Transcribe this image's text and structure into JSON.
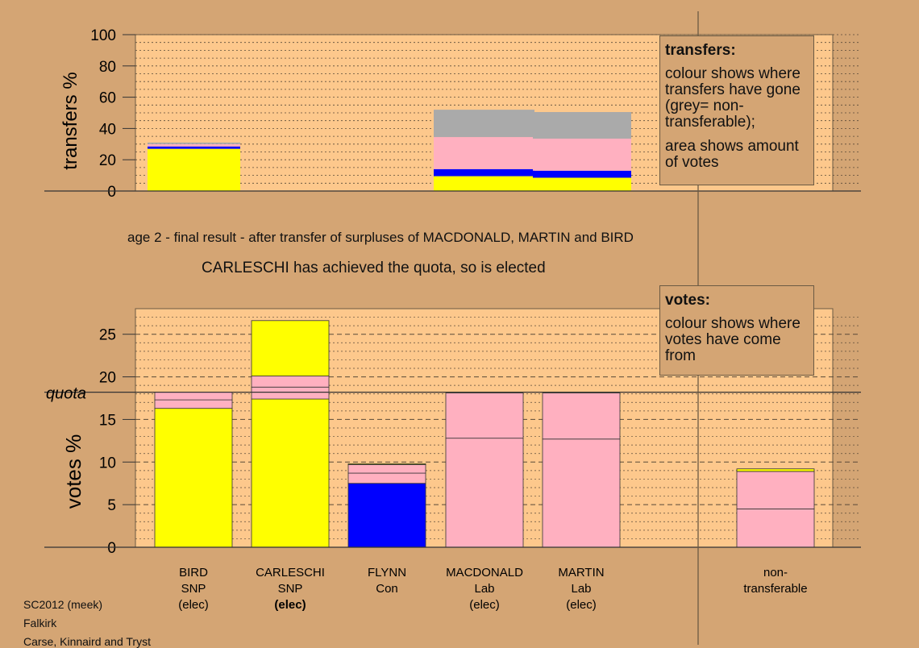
{
  "captions": {
    "stage": "age 2 - final result - after transfer of surpluses of MACDONALD, MARTIN and BIRD",
    "result": "CARLESCHI has achieved the quota, so is elected"
  },
  "legends": {
    "transfers": {
      "title": "transfers:",
      "line1": "colour shows where transfers have gone (grey= non-transferable);",
      "line2": "area shows amount of votes"
    },
    "votes": {
      "title": "votes:",
      "line1": "colour shows where votes have come from"
    }
  },
  "footer": {
    "line1": "SC2012 (meek)",
    "line2": "Falkirk",
    "line3": "Carse, Kinnaird and Tryst"
  },
  "colors": {
    "background": "#d4a574",
    "plot": "#fdc88c",
    "snp": "#ffff00",
    "con": "#0000ff",
    "lab": "#ffb0c0",
    "nontransferable": "#aaaaaa"
  },
  "chart_data": [
    {
      "type": "bar",
      "ylabel": "transfers %",
      "ylim": [
        0,
        100
      ],
      "yticks": [
        0,
        20,
        40,
        60,
        80,
        100
      ],
      "stacked": true,
      "columns": [
        {
          "name": "BIRD",
          "segments": [
            {
              "party": "SNP",
              "color": "#ffff00",
              "value": 27
            },
            {
              "party": "Con",
              "color": "#0000ff",
              "value": 1.5
            },
            {
              "party": "Lab",
              "color": "#ffb0c0",
              "value": 1.5
            },
            {
              "party": "non-transferable",
              "color": "#aaaaaa",
              "value": 1
            }
          ]
        },
        {
          "name": "CARLESCHI",
          "segments": []
        },
        {
          "name": "FLYNN",
          "segments": []
        },
        {
          "name": "MACDONALD",
          "segments": [
            {
              "party": "SNP",
              "color": "#ffff00",
              "value": 9.5
            },
            {
              "party": "Con",
              "color": "#0000ff",
              "value": 4.5
            },
            {
              "party": "Lab",
              "color": "#ffb0c0",
              "value": 20.5
            },
            {
              "party": "non-transferable",
              "color": "#aaaaaa",
              "value": 17.5
            }
          ]
        },
        {
          "name": "MARTIN",
          "segments": [
            {
              "party": "SNP",
              "color": "#ffff00",
              "value": 8.5
            },
            {
              "party": "Con",
              "color": "#0000ff",
              "value": 4.5
            },
            {
              "party": "Lab",
              "color": "#ffb0c0",
              "value": 20.5
            },
            {
              "party": "non-transferable",
              "color": "#aaaaaa",
              "value": 17
            }
          ]
        }
      ]
    },
    {
      "type": "bar",
      "ylabel": "votes %",
      "ylim": [
        0,
        28
      ],
      "yticks": [
        0,
        5,
        10,
        15,
        20,
        25
      ],
      "quota": 18.2,
      "quota_label": "quota",
      "stacked": true,
      "categories": [
        {
          "name": "BIRD",
          "party": "SNP",
          "status": "(elec)",
          "status_bold": false
        },
        {
          "name": "CARLESCHI",
          "party": "SNP",
          "status": "(elec)",
          "status_bold": true
        },
        {
          "name": "FLYNN",
          "party": "Con",
          "status": "",
          "status_bold": false
        },
        {
          "name": "MACDONALD",
          "party": "Lab",
          "status": "(elec)",
          "status_bold": false
        },
        {
          "name": "MARTIN",
          "party": "Lab",
          "status": "(elec)",
          "status_bold": false
        },
        {
          "name": "",
          "party": "",
          "status": "",
          "status_bold": false
        },
        {
          "name": "non-",
          "party": "transferable",
          "status": "",
          "status_bold": false
        }
      ],
      "columns": [
        {
          "segments": [
            {
              "color": "#ffff00",
              "value": 16.3
            },
            {
              "color": "#ffb0c0",
              "value": 1.0
            },
            {
              "color": "#ffb0c0",
              "value": 0.9
            }
          ]
        },
        {
          "segments": [
            {
              "color": "#ffff00",
              "value": 17.4
            },
            {
              "color": "#ffb0c0",
              "value": 1.4
            },
            {
              "color": "#ffb0c0",
              "value": 1.3
            },
            {
              "color": "#ffff00",
              "value": 6.5
            }
          ]
        },
        {
          "segments": [
            {
              "color": "#0000ff",
              "value": 7.5
            },
            {
              "color": "#ffb0c0",
              "value": 1.2
            },
            {
              "color": "#ffb0c0",
              "value": 1.0
            },
            {
              "color": "#ffff00",
              "value": 0.1
            }
          ]
        },
        {
          "segments": [
            {
              "color": "#ffb0c0",
              "value": 12.8
            },
            {
              "color": "#ffb0c0",
              "value": 5.3
            }
          ]
        },
        {
          "segments": [
            {
              "color": "#ffb0c0",
              "value": 12.7
            },
            {
              "color": "#ffb0c0",
              "value": 5.4
            }
          ]
        },
        {
          "segments": []
        },
        {
          "segments": [
            {
              "color": "#ffb0c0",
              "value": 4.5
            },
            {
              "color": "#ffb0c0",
              "value": 4.4
            },
            {
              "color": "#ffff00",
              "value": 0.3
            }
          ]
        }
      ]
    }
  ]
}
